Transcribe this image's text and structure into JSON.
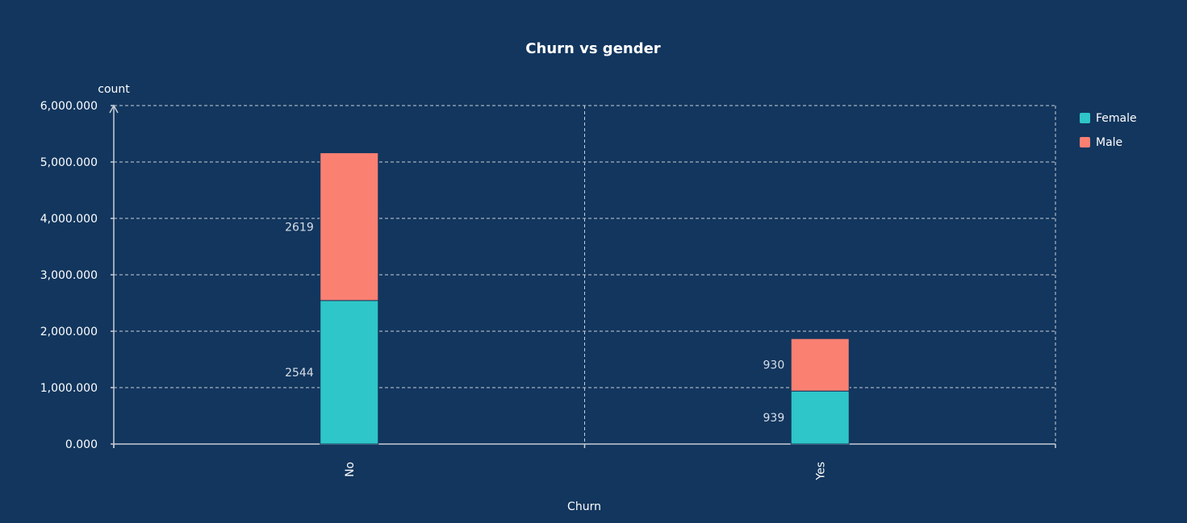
{
  "chart_data": {
    "type": "bar",
    "stacked": true,
    "title": "Churn vs gender",
    "xlabel": "Churn",
    "ylabel": "count",
    "categories": [
      "No",
      "Yes"
    ],
    "series": [
      {
        "name": "Female",
        "values": [
          2544,
          939
        ]
      },
      {
        "name": "Male",
        "values": [
          2619,
          930
        ]
      }
    ],
    "data_labels": [
      [
        "2544",
        "939"
      ],
      [
        "2619",
        "930"
      ]
    ],
    "ylim": [
      0,
      6000
    ],
    "yticks": [
      0,
      1000,
      2000,
      3000,
      4000,
      5000,
      6000
    ],
    "ytick_labels": [
      "0.000",
      "1,000.000",
      "2,000.000",
      "3,000.000",
      "4,000.000",
      "5,000.000",
      "6,000.000"
    ],
    "grid": true,
    "legend": "top-right",
    "colors": {
      "background": "#12365e",
      "Female": "#2ec6c8",
      "Male": "#fa8072",
      "grid": "#c9ced6",
      "text": "#ffffff"
    }
  }
}
